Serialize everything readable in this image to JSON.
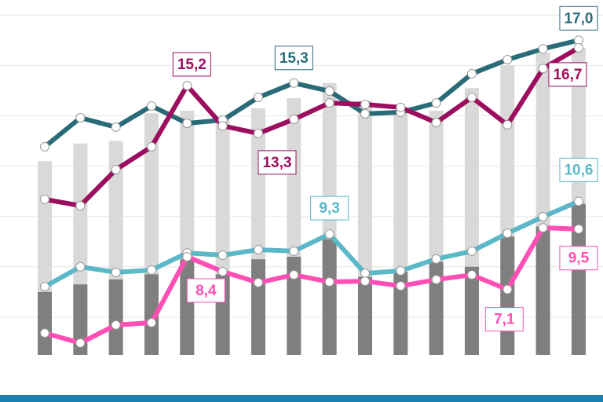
{
  "chart_data": {
    "type": "bar-line",
    "categories": [
      null,
      null,
      null,
      null,
      null,
      null,
      null,
      null,
      null,
      null,
      null,
      null,
      null,
      null,
      null,
      null
    ],
    "ylim": [
      4.5,
      18.6
    ],
    "yticks": [
      6,
      8,
      10,
      12,
      14,
      16,
      18
    ],
    "grid": true,
    "bars": [
      {
        "color": "#d9d9d9",
        "values": [
          12.2,
          12.9,
          13.0,
          14.1,
          14.2,
          13.9,
          14.3,
          14.7,
          15.3,
          14.6,
          14.2,
          14.2,
          15.1,
          16.0,
          16.5,
          16.7
        ]
      },
      {
        "color": "#7f7f7f",
        "values": [
          7.0,
          7.3,
          7.5,
          7.7,
          8.3,
          7.7,
          8.3,
          8.4,
          9.1,
          7.6,
          7.8,
          8.2,
          8.0,
          9.2,
          9.6,
          10.5
        ]
      }
    ],
    "series": [
      {
        "color": "#2a6b78",
        "values": [
          12.77,
          13.92,
          13.55,
          14.39,
          13.7,
          13.83,
          14.73,
          15.3,
          14.98,
          14.08,
          14.14,
          14.51,
          15.67,
          16.23,
          16.66,
          17.0
        ],
        "value_labels": [
          null,
          null,
          null,
          null,
          null,
          null,
          null,
          "15,3",
          null,
          null,
          null,
          null,
          null,
          null,
          null,
          "17,0"
        ]
      },
      {
        "color": "#9c0f5f",
        "values": [
          10.68,
          10.43,
          11.86,
          12.77,
          15.2,
          13.6,
          13.3,
          13.86,
          14.51,
          14.45,
          14.33,
          13.73,
          14.73,
          13.64,
          15.88,
          16.7
        ],
        "value_labels": [
          null,
          null,
          null,
          null,
          "15,2",
          null,
          "13,3",
          null,
          null,
          null,
          null,
          null,
          null,
          null,
          null,
          "16,7"
        ]
      },
      {
        "color": "#5bb8c8",
        "values": [
          7.21,
          8.0,
          7.78,
          7.87,
          8.55,
          8.46,
          8.68,
          8.62,
          9.3,
          7.74,
          7.84,
          8.31,
          8.62,
          9.33,
          9.99,
          10.6
        ],
        "value_labels": [
          null,
          null,
          null,
          null,
          null,
          null,
          null,
          null,
          "9,3",
          null,
          null,
          null,
          null,
          null,
          null,
          "10,6"
        ]
      },
      {
        "color": "#ff4fb4",
        "values": [
          5.37,
          4.97,
          5.69,
          5.78,
          8.4,
          7.81,
          7.37,
          7.68,
          7.4,
          7.43,
          7.24,
          7.49,
          7.68,
          7.1,
          9.55,
          9.5
        ],
        "value_labels": [
          null,
          null,
          null,
          null,
          "8,4",
          null,
          null,
          null,
          null,
          null,
          null,
          null,
          null,
          "7,1",
          null,
          "9,5"
        ]
      }
    ]
  }
}
